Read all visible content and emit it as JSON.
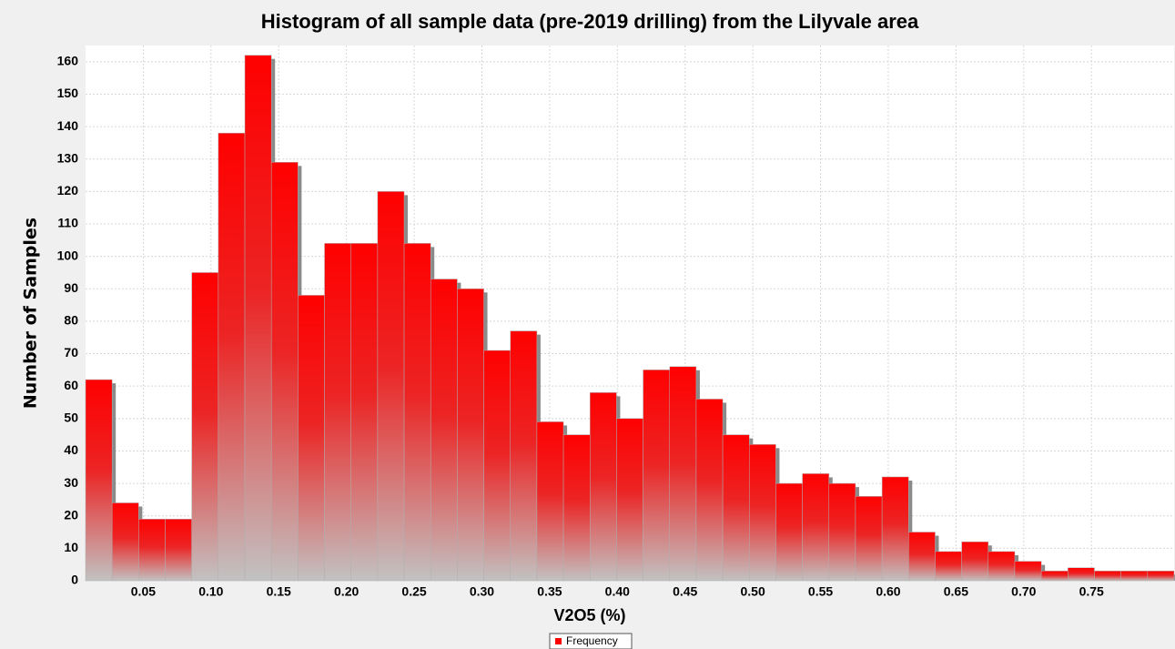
{
  "chart_data": {
    "type": "histogram",
    "title": "Histogram of all sample data (pre-2019 drilling) from the Lilyvale area",
    "x_label": "V2O5  (%)",
    "y_label": "Number of Samples",
    "legend": "Frequency",
    "legend_position": "bottom",
    "color": "#ff0000",
    "shadow_color": "#8a8a8a",
    "grid": true,
    "bins": [
      0.0074,
      0.027,
      0.0466,
      0.0662,
      0.0858,
      0.1054,
      0.125,
      0.1446,
      0.1642,
      0.1838,
      0.2034,
      0.223,
      0.2426,
      0.2622,
      0.2818,
      0.3014,
      0.321,
      0.3406,
      0.3602,
      0.3798,
      0.3994,
      0.419,
      0.4386,
      0.4582,
      0.4778,
      0.4974,
      0.517,
      0.5366,
      0.5562,
      0.5758,
      0.5954,
      0.615,
      0.6346,
      0.6542,
      0.6738,
      0.6934,
      0.713,
      0.7326,
      0.7522,
      0.7718,
      0.7914,
      0.811
    ],
    "counts": [
      62,
      24,
      19,
      19,
      95,
      138,
      162,
      129,
      88,
      104,
      104,
      120,
      104,
      93,
      90,
      71,
      77,
      49,
      45,
      58,
      50,
      65,
      66,
      56,
      45,
      42,
      30,
      33,
      30,
      26,
      32,
      15,
      9,
      12,
      9,
      6,
      3,
      4,
      3,
      3,
      3
    ],
    "xlim": [
      0.0074,
      0.811
    ],
    "xticks": [
      {
        "value": 0.05,
        "label": "0.05"
      },
      {
        "value": 0.1,
        "label": "0.10"
      },
      {
        "value": 0.15,
        "label": "0.15"
      },
      {
        "value": 0.2,
        "label": "0.20"
      },
      {
        "value": 0.25,
        "label": "0.25"
      },
      {
        "value": 0.3,
        "label": "0.30"
      },
      {
        "value": 0.35,
        "label": "0.35"
      },
      {
        "value": 0.4,
        "label": "0.40"
      },
      {
        "value": 0.45,
        "label": "0.45"
      },
      {
        "value": 0.5,
        "label": "0.50"
      },
      {
        "value": 0.55,
        "label": "0.55"
      },
      {
        "value": 0.6,
        "label": "0.60"
      },
      {
        "value": 0.65,
        "label": "0.65"
      },
      {
        "value": 0.7,
        "label": "0.70"
      },
      {
        "value": 0.75,
        "label": "0.75"
      }
    ],
    "ylim": [
      0,
      165
    ],
    "yticks": [
      0,
      10,
      20,
      30,
      40,
      50,
      60,
      70,
      80,
      90,
      100,
      110,
      120,
      130,
      140,
      150,
      160
    ]
  }
}
